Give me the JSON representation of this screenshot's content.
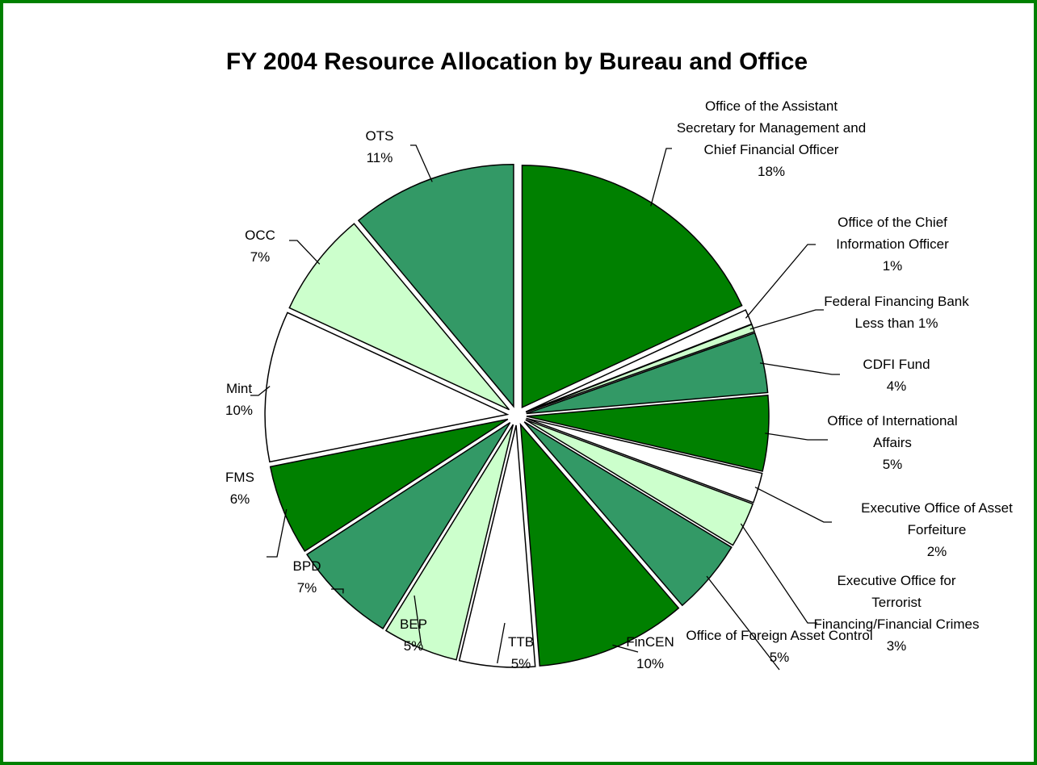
{
  "chart_data": {
    "type": "pie",
    "title": "FY 2004 Resource Allocation by Bureau and Office",
    "categories": [
      "Office of the Assistant Secretary for Management and Chief Financial Officer",
      "Office of the Chief Information Officer",
      "Federal Financing Bank",
      "CDFI Fund",
      "Office of International Affairs",
      "Executive Office of Asset Forfeiture",
      "Executive Office for Terrorist Financing/Financial Crimes",
      "Office of Foreign Asset Control",
      "FinCEN",
      "TTB",
      "BEP",
      "BPD",
      "FMS",
      "Mint",
      "OCC",
      "OTS"
    ],
    "values": [
      18,
      1,
      0.5,
      4,
      5,
      2,
      3,
      5,
      10,
      5,
      5,
      7,
      6,
      10,
      7,
      11
    ],
    "value_labels": [
      "18%",
      "1%",
      "Less than 1%",
      "4%",
      "5%",
      "2%",
      "3%",
      "5%",
      "10%",
      "5%",
      "5%",
      "7%",
      "6%",
      "10%",
      "7%",
      "11%"
    ],
    "colors": [
      "#008000",
      "#ffffff",
      "#ccffcc",
      "#339966",
      "#008000",
      "#ffffff",
      "#ccffcc",
      "#339966",
      "#008000",
      "#ffffff",
      "#ccffcc",
      "#339966",
      "#008000",
      "#ffffff",
      "#ccffcc",
      "#339966"
    ]
  }
}
